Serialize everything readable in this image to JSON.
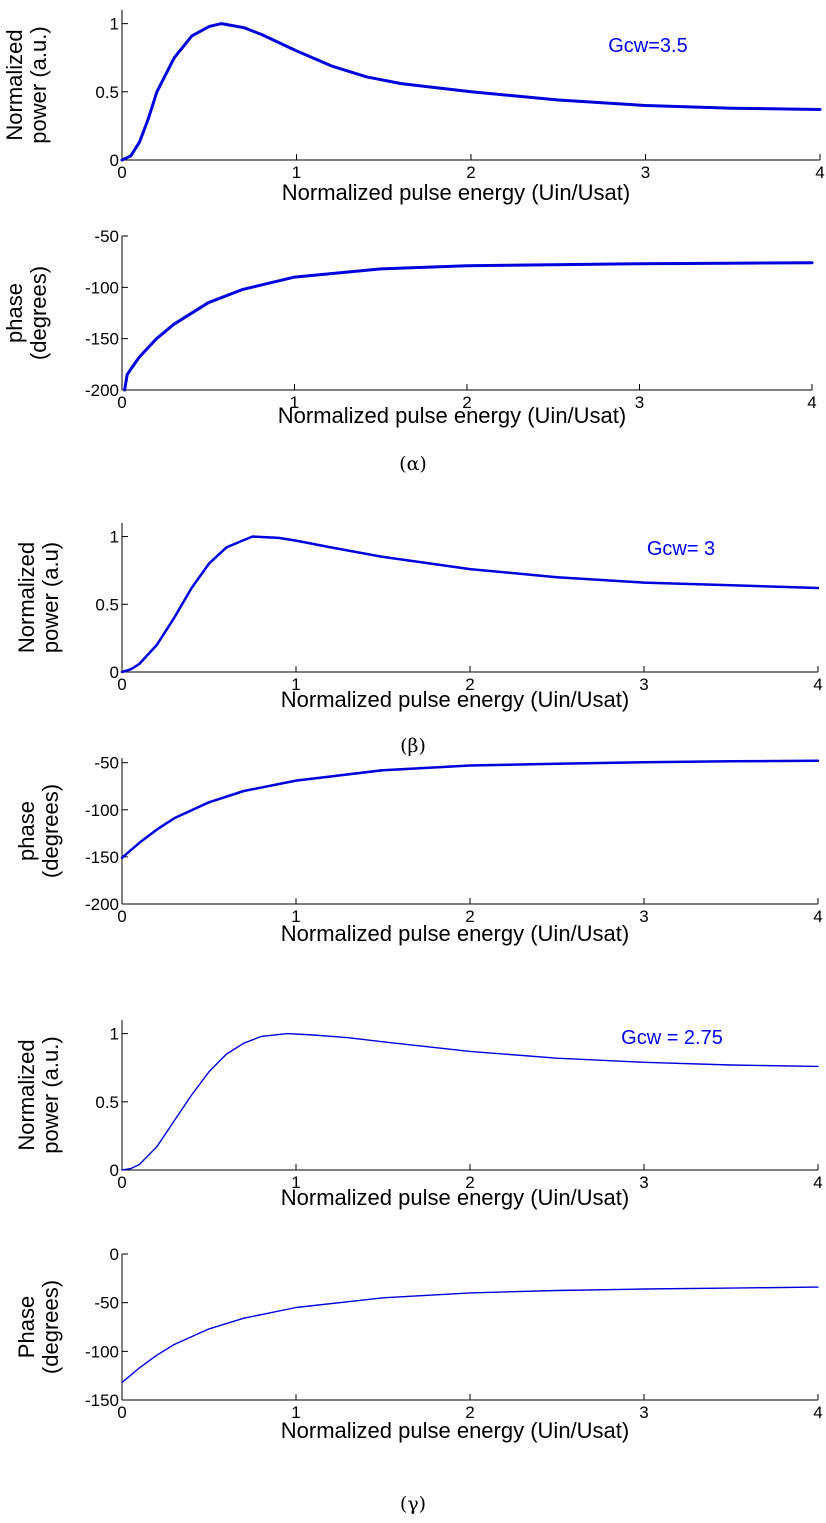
{
  "chart_data": [
    {
      "type": "line",
      "panel": "alpha-power",
      "xlabel": "Normalized pulse energy (Uin/Usat)",
      "ylabel": [
        "Normalized",
        "power (a.u.)"
      ],
      "xlim": [
        0,
        4
      ],
      "ylim": [
        0,
        1.1
      ],
      "xticks": [
        "0",
        "1",
        "2",
        "3",
        "4"
      ],
      "yticks": [
        "0",
        "0.5",
        "1"
      ],
      "ytick_values": [
        0,
        0.5,
        1
      ],
      "annotation": "Gcw=3.5",
      "grid": false,
      "series": [
        {
          "x": [
            0,
            0.05,
            0.1,
            0.15,
            0.2,
            0.3,
            0.4,
            0.5,
            0.57,
            0.7,
            0.8,
            1.0,
            1.2,
            1.4,
            1.6,
            2.0,
            2.5,
            3.0,
            3.5,
            4.0
          ],
          "y": [
            0,
            0.03,
            0.13,
            0.3,
            0.5,
            0.75,
            0.91,
            0.98,
            1.0,
            0.97,
            0.92,
            0.8,
            0.69,
            0.61,
            0.56,
            0.5,
            0.44,
            0.4,
            0.38,
            0.37
          ]
        }
      ]
    },
    {
      "type": "line",
      "panel": "alpha-phase",
      "xlabel": "Normalized pulse energy (Uin/Usat)",
      "ylabel": [
        "phase",
        "(degrees)"
      ],
      "xlim": [
        0,
        4
      ],
      "ylim": [
        -200,
        -50
      ],
      "xticks": [
        "0",
        "1",
        "2",
        "3",
        "4"
      ],
      "yticks": [
        "-50",
        "-100",
        "-150",
        "-200"
      ],
      "ytick_values": [
        -50,
        -100,
        -150,
        -200
      ],
      "grid": false,
      "series": [
        {
          "x": [
            0.015,
            0.03,
            0.05,
            0.1,
            0.2,
            0.3,
            0.5,
            0.7,
            1.0,
            1.5,
            2.0,
            2.5,
            3.0,
            3.5,
            4.0
          ],
          "y": [
            -200,
            -185,
            -180,
            -168,
            -150,
            -136,
            -115,
            -102,
            -90,
            -82,
            -79,
            -78,
            -77,
            -76.5,
            -76
          ]
        }
      ]
    },
    {
      "type": "line",
      "panel": "beta-power",
      "xlabel": "Normalized pulse energy (Uin/Usat)",
      "ylabel": [
        "Normalized",
        "power (a.u)"
      ],
      "xlim": [
        0,
        4
      ],
      "ylim": [
        0,
        1.1
      ],
      "xticks": [
        "0",
        "1",
        "2",
        "3",
        "4"
      ],
      "yticks": [
        "0",
        "0.5",
        "1"
      ],
      "ytick_values": [
        0,
        0.5,
        1
      ],
      "annotation": "Gcw= 3",
      "grid": false,
      "series": [
        {
          "x": [
            0,
            0.05,
            0.1,
            0.2,
            0.3,
            0.4,
            0.5,
            0.6,
            0.75,
            0.9,
            1.0,
            1.2,
            1.5,
            2.0,
            2.5,
            3.0,
            3.5,
            4.0
          ],
          "y": [
            0,
            0.02,
            0.06,
            0.2,
            0.4,
            0.62,
            0.8,
            0.92,
            1.0,
            0.99,
            0.97,
            0.92,
            0.85,
            0.76,
            0.7,
            0.66,
            0.64,
            0.62
          ]
        }
      ]
    },
    {
      "type": "line",
      "panel": "beta-phase",
      "xlabel": "Normalized pulse energy (Uin/Usat)",
      "ylabel": [
        "phase",
        "(degrees)"
      ],
      "xlim": [
        0,
        4
      ],
      "ylim": [
        -200,
        -45
      ],
      "xticks": [
        "0",
        "1",
        "2",
        "3",
        "4"
      ],
      "yticks": [
        "-50",
        "-100",
        "-150",
        "-200"
      ],
      "ytick_values": [
        -50,
        -100,
        -150,
        -200
      ],
      "grid": false,
      "series": [
        {
          "x": [
            0,
            0.1,
            0.2,
            0.3,
            0.5,
            0.7,
            1.0,
            1.5,
            2.0,
            2.5,
            3.0,
            3.5,
            4.0
          ],
          "y": [
            -151,
            -135,
            -121,
            -109,
            -92,
            -80,
            -69,
            -58,
            -53,
            -51,
            -49.5,
            -48.5,
            -48
          ]
        }
      ]
    },
    {
      "type": "line",
      "panel": "gamma-power",
      "xlabel": "Normalized pulse energy (Uin/Usat)",
      "ylabel": [
        "Normalized",
        "power (a.u.)"
      ],
      "xlim": [
        0,
        4
      ],
      "ylim": [
        0,
        1.1
      ],
      "xticks": [
        "0",
        "1",
        "2",
        "3",
        "4"
      ],
      "yticks": [
        "0",
        "0.5",
        "1"
      ],
      "ytick_values": [
        0,
        0.5,
        1
      ],
      "annotation": "Gcw = 2.75",
      "grid": false,
      "series": [
        {
          "x": [
            0,
            0.05,
            0.1,
            0.2,
            0.3,
            0.4,
            0.5,
            0.6,
            0.7,
            0.8,
            0.95,
            1.1,
            1.3,
            1.5,
            2.0,
            2.5,
            3.0,
            3.5,
            4.0
          ],
          "y": [
            0,
            0.01,
            0.04,
            0.17,
            0.36,
            0.55,
            0.72,
            0.85,
            0.93,
            0.98,
            1.0,
            0.99,
            0.97,
            0.94,
            0.87,
            0.82,
            0.79,
            0.77,
            0.76
          ]
        }
      ]
    },
    {
      "type": "line",
      "panel": "gamma-phase",
      "xlabel": "Normalized pulse energy (Uin/Usat)",
      "ylabel": [
        "Phase",
        "(degrees)"
      ],
      "xlim": [
        0,
        4
      ],
      "ylim": [
        -150,
        0
      ],
      "xticks": [
        "0",
        "1",
        "2",
        "3",
        "4"
      ],
      "yticks": [
        "0",
        "-50",
        "-100",
        "-150"
      ],
      "ytick_values": [
        0,
        -50,
        -100,
        -150
      ],
      "grid": false,
      "series": [
        {
          "x": [
            0,
            0.1,
            0.2,
            0.3,
            0.5,
            0.7,
            1.0,
            1.5,
            2.0,
            2.5,
            3.0,
            3.5,
            4.0
          ],
          "y": [
            -132,
            -117,
            -104,
            -93,
            -77,
            -66,
            -55,
            -45,
            -40,
            -37.5,
            -36,
            -35,
            -34
          ]
        }
      ]
    }
  ],
  "captions": [
    "(α)",
    "(β)",
    "(γ)"
  ]
}
